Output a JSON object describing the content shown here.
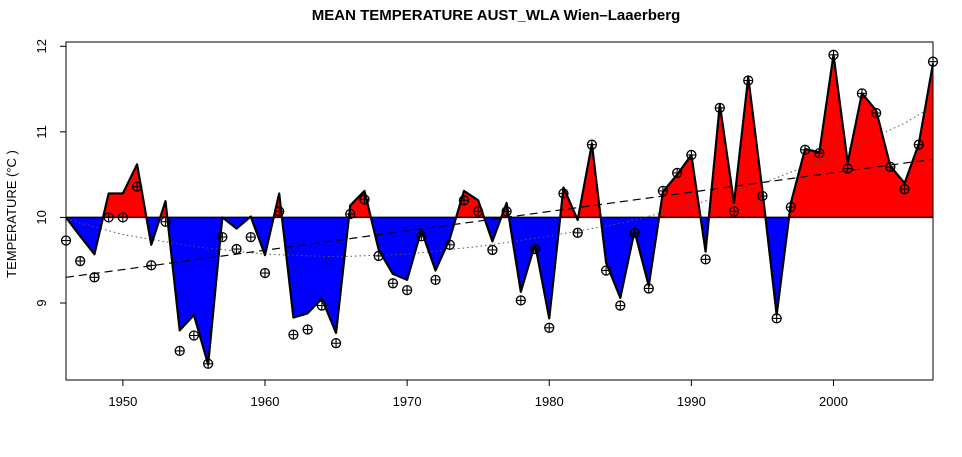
{
  "chart_data": {
    "type": "area",
    "title": "MEAN TEMPERATURE AUST_WLA Wien–Laaerberg",
    "xlabel": "",
    "ylabel": "TEMPERATURE (°C )",
    "xlim": [
      1946,
      2007
    ],
    "ylim": [
      8.1,
      12.05
    ],
    "baseline": 10.0,
    "x_ticks": [
      1950,
      1960,
      1970,
      1980,
      1990,
      2000
    ],
    "y_ticks": [
      9,
      10,
      11,
      12
    ],
    "colors": {
      "above": "#ff0000",
      "below": "#0000ff",
      "line": "#000000"
    },
    "grid": false,
    "legend": "none",
    "points": {
      "x": [
        1946,
        1947,
        1948,
        1949,
        1950,
        1951,
        1952,
        1953,
        1954,
        1955,
        1956,
        1957,
        1958,
        1959,
        1960,
        1961,
        1962,
        1963,
        1964,
        1965,
        1966,
        1967,
        1968,
        1969,
        1970,
        1971,
        1972,
        1973,
        1974,
        1975,
        1976,
        1977,
        1978,
        1979,
        1980,
        1981,
        1982,
        1983,
        1984,
        1985,
        1986,
        1987,
        1988,
        1989,
        1990,
        1991,
        1992,
        1993,
        1994,
        1995,
        1996,
        1997,
        1998,
        1999,
        2000,
        2001,
        2002,
        2003,
        2004,
        2005,
        2006,
        2007
      ],
      "y": [
        9.73,
        9.49,
        9.3,
        10.0,
        10.0,
        10.36,
        9.44,
        9.95,
        8.44,
        8.62,
        8.29,
        9.77,
        9.63,
        9.77,
        9.35,
        10.07,
        8.63,
        8.69,
        8.97,
        8.53,
        10.04,
        10.21,
        9.55,
        9.23,
        9.15,
        9.78,
        9.27,
        9.68,
        10.2,
        10.07,
        9.62,
        10.07,
        9.03,
        9.63,
        8.71,
        10.28,
        9.82,
        10.85,
        9.38,
        8.97,
        9.82,
        9.17,
        10.31,
        10.52,
        10.73,
        9.51,
        11.28,
        10.07,
        11.6,
        10.25,
        8.82,
        10.12,
        10.79,
        10.75,
        11.9,
        10.57,
        11.45,
        11.22,
        10.59,
        10.33,
        10.85,
        11.82
      ]
    },
    "line": {
      "x": [
        1946,
        1947,
        1948,
        1949,
        1950,
        1951,
        1952,
        1953,
        1954,
        1955,
        1956,
        1957,
        1958,
        1959,
        1960,
        1961,
        1962,
        1963,
        1964,
        1965,
        1966,
        1967,
        1968,
        1969,
        1970,
        1971,
        1972,
        1973,
        1974,
        1975,
        1976,
        1977,
        1978,
        1979,
        1980,
        1981,
        1982,
        1983,
        1984,
        1985,
        1986,
        1987,
        1988,
        1989,
        1990,
        1991,
        1992,
        1993,
        1994,
        1995,
        1996,
        1997,
        1998,
        1999,
        2000,
        2001,
        2002,
        2003,
        2004,
        2005,
        2006,
        2007
      ],
      "y": [
        10.0,
        9.78,
        9.57,
        10.28,
        10.28,
        10.62,
        9.68,
        10.19,
        8.68,
        8.86,
        8.28,
        10.0,
        9.87,
        10.01,
        9.56,
        10.28,
        8.83,
        8.88,
        9.05,
        8.65,
        10.14,
        10.31,
        9.62,
        9.34,
        9.27,
        9.85,
        9.38,
        9.75,
        10.31,
        10.2,
        9.72,
        10.17,
        9.13,
        9.69,
        8.82,
        10.35,
        9.97,
        10.86,
        9.47,
        9.06,
        9.84,
        9.2,
        10.3,
        10.5,
        10.73,
        9.6,
        11.32,
        10.17,
        11.64,
        10.31,
        8.86,
        10.17,
        10.8,
        10.76,
        11.9,
        10.64,
        11.45,
        11.25,
        10.6,
        10.4,
        10.86,
        11.8
      ]
    },
    "trend_linear": {
      "x": [
        1946,
        2007
      ],
      "y": [
        9.3,
        10.68
      ]
    },
    "trend_smooth": {
      "x": [
        1946,
        1950,
        1955,
        1960,
        1965,
        1970,
        1975,
        1980,
        1985,
        1990,
        1995,
        2000,
        2005,
        2007
      ],
      "y": [
        9.98,
        9.8,
        9.66,
        9.57,
        9.54,
        9.57,
        9.66,
        9.78,
        9.93,
        10.14,
        10.4,
        10.72,
        11.1,
        11.3
      ]
    }
  }
}
